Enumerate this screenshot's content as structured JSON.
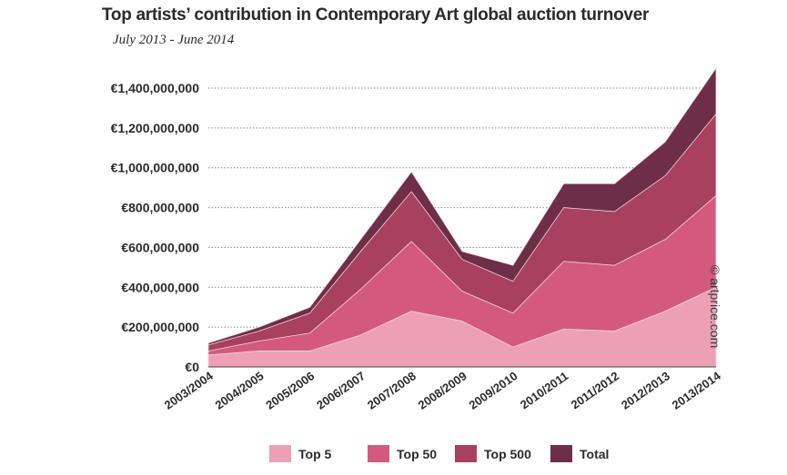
{
  "title": "Top artists’ contribution in Contemporary Art global auction turnover",
  "subtitle": "July 2013 - June 2014",
  "credit": "© artprice.com",
  "chart_data": {
    "type": "area",
    "stacked": false,
    "categories": [
      "2003/2004",
      "2004/2005",
      "2005/2006",
      "2006/2007",
      "2007/2008",
      "2008/2009",
      "2009/2010",
      "2010/2011",
      "2011/2012",
      "2012/2013",
      "2013/2014"
    ],
    "y_ticks": [
      0,
      200000000,
      400000000,
      600000000,
      800000000,
      1000000000,
      1200000000,
      1400000000
    ],
    "y_tick_labels": [
      "€0",
      "€200,000,000",
      "€400,000,000",
      "€600,000,000",
      "€800,000,000",
      "€1,000,000,000",
      "€1,200,000,000",
      "€1,400,000,000"
    ],
    "ylim": [
      0,
      1400000000
    ],
    "grid": "horizontal dotted",
    "legend_position": "bottom",
    "series": [
      {
        "name": "Total",
        "color": "#6e2e47",
        "values": [
          120000000,
          200000000,
          300000000,
          640000000,
          980000000,
          580000000,
          510000000,
          920000000,
          920000000,
          1130000000,
          1500000000
        ]
      },
      {
        "name": "Top 500",
        "color": "#a8405f",
        "values": [
          110000000,
          180000000,
          270000000,
          580000000,
          880000000,
          540000000,
          430000000,
          800000000,
          780000000,
          960000000,
          1270000000
        ]
      },
      {
        "name": "Top 50",
        "color": "#d35a7e",
        "values": [
          80000000,
          130000000,
          170000000,
          390000000,
          630000000,
          380000000,
          270000000,
          530000000,
          510000000,
          640000000,
          860000000
        ]
      },
      {
        "name": "Top 5",
        "color": "#eda0b4",
        "values": [
          60000000,
          80000000,
          80000000,
          160000000,
          280000000,
          230000000,
          100000000,
          190000000,
          180000000,
          280000000,
          400000000
        ]
      }
    ],
    "legend": [
      {
        "name": "Top 5",
        "color": "#eda0b4"
      },
      {
        "name": "Top 50",
        "color": "#d35a7e"
      },
      {
        "name": "Top 500",
        "color": "#a8405f"
      },
      {
        "name": "Total",
        "color": "#6e2e47"
      }
    ]
  }
}
